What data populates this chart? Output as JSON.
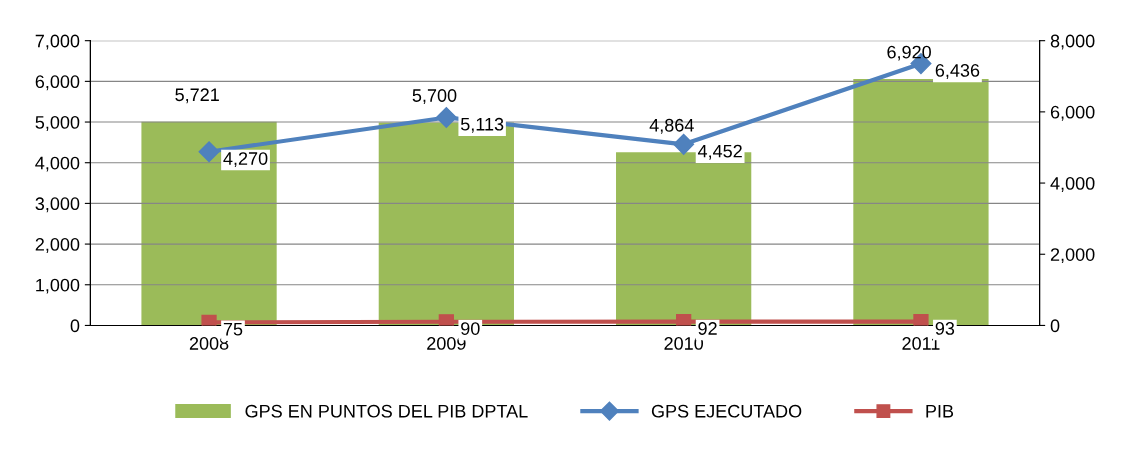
{
  "chart_data": {
    "type": "bar",
    "categories": [
      "2008",
      "2009",
      "2010",
      "2011"
    ],
    "series": [
      {
        "name": "GPS EN PUNTOS DEL PIB DPTAL",
        "axis": "y2",
        "color": "#9bbb59",
        "values": [
          5721,
          5700,
          4864,
          6920
        ],
        "value_labels": [
          "5,721",
          "5,700",
          "4,864",
          "6,920"
        ]
      },
      {
        "name": "GPS EJECUTADO",
        "type": "line",
        "axis": "y",
        "color": "#4f81bd",
        "marker": "diamond",
        "values": [
          4270,
          5113,
          4452,
          6436
        ],
        "value_labels": [
          "4,270",
          "5,113",
          "4,452",
          "6,436"
        ]
      },
      {
        "name": "PIB",
        "type": "line",
        "axis": "y",
        "color": "#c0504d",
        "marker": "square",
        "values": [
          75,
          90,
          92,
          93
        ],
        "value_labels": [
          "75",
          "90",
          "92",
          "93"
        ]
      }
    ],
    "ylim": [
      0,
      7000
    ],
    "yticks": [
      {
        "value": 0,
        "label": "0"
      },
      {
        "value": 1000,
        "label": "1,000"
      },
      {
        "value": 2000,
        "label": "2,000"
      },
      {
        "value": 3000,
        "label": "3,000"
      },
      {
        "value": 4000,
        "label": "4,000"
      },
      {
        "value": 5000,
        "label": "5,000"
      },
      {
        "value": 6000,
        "label": "6,000"
      },
      {
        "value": 7000,
        "label": "7,000"
      }
    ],
    "y2lim": [
      0,
      8000
    ],
    "y2ticks": [
      {
        "value": 0,
        "label": "0"
      },
      {
        "value": 2000,
        "label": "2,000"
      },
      {
        "value": 4000,
        "label": "4,000"
      },
      {
        "value": 6000,
        "label": "6,000"
      },
      {
        "value": 8000,
        "label": "8,000"
      }
    ],
    "grid": "y",
    "legend": "bottom"
  }
}
